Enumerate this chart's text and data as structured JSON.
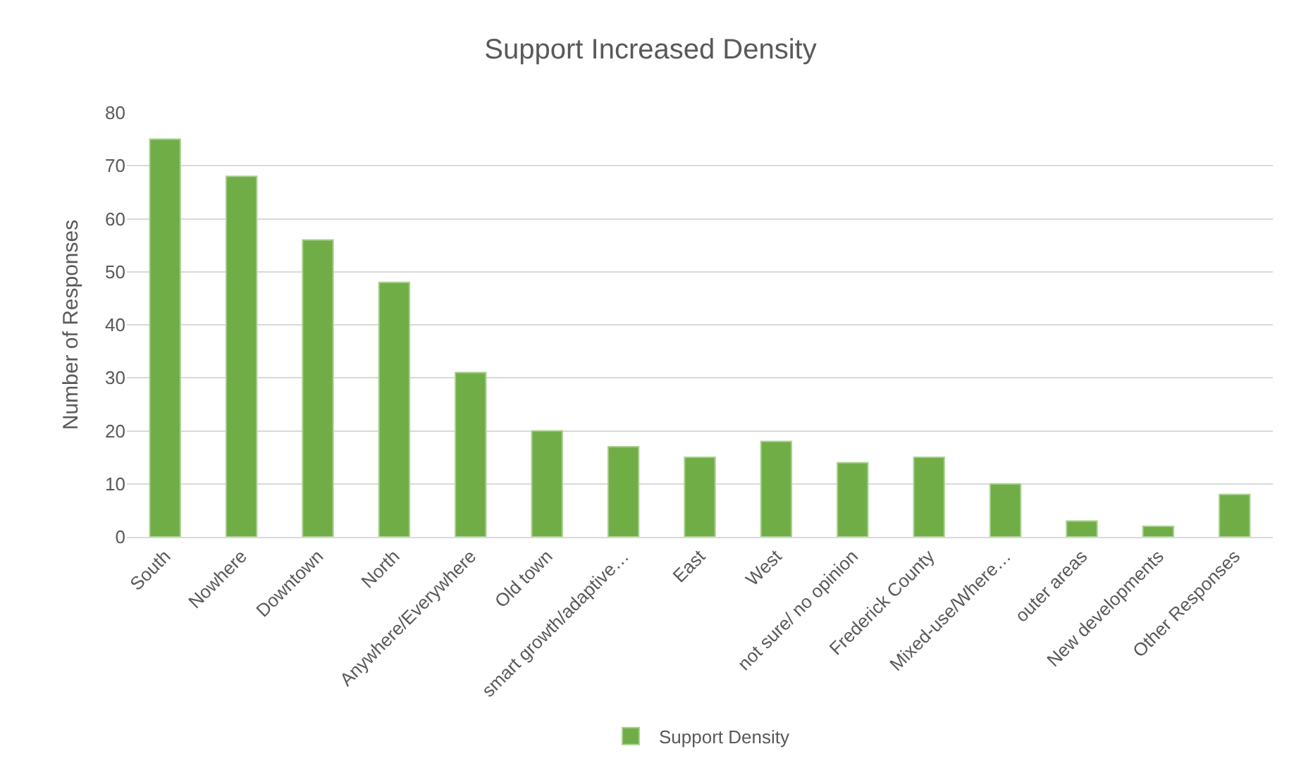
{
  "chart_data": {
    "type": "bar",
    "title": "Support Increased Density",
    "ylabel": "Number of Responses",
    "categories": [
      "South",
      "Nowhere",
      "Downtown",
      "North",
      "Anywhere/Everywhere",
      "Old town",
      "smart growth/adaptive…",
      "East",
      "West",
      "not sure/ no opinion",
      "Frederick County",
      "Mixed-use/Where…",
      "outer areas",
      "New developments",
      "Other Responses"
    ],
    "series": [
      {
        "name": "Support Density",
        "color": "#70ad47",
        "values": [
          75,
          68,
          56,
          48,
          31,
          20,
          17,
          15,
          18,
          14,
          15,
          10,
          3,
          2,
          8
        ]
      }
    ],
    "ylim": [
      0,
      80
    ],
    "yticks": [
      0,
      10,
      20,
      30,
      40,
      50,
      60,
      70,
      80
    ],
    "grid": "y",
    "legend": "bottom"
  }
}
